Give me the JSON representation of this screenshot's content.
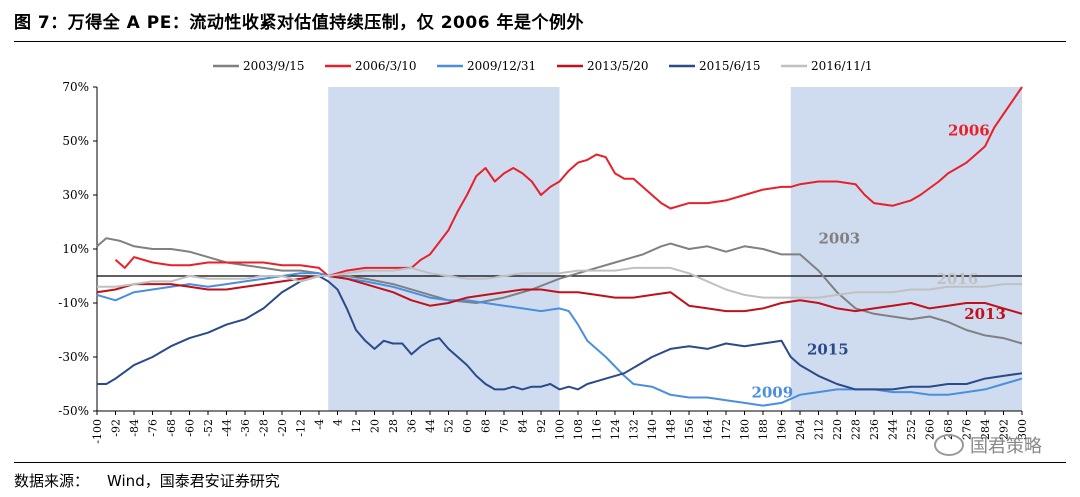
{
  "header": {
    "title": "图 7：万得全 A PE：流动性收紧对估值持续压制，仅 2006 年是个例外"
  },
  "footer": {
    "source_label": "数据来源：",
    "source_value": "Wind，国泰君安证券研究",
    "watermark": "国君策略"
  },
  "chart_data": {
    "type": "line",
    "title": "图 7：万得全 A PE：流动性收紧对估值持续压制，仅 2006 年是个例外",
    "xlabel": "",
    "ylabel": "",
    "xlim": [
      -100,
      300
    ],
    "ylim": [
      -50,
      70
    ],
    "yticks": [
      70,
      50,
      30,
      10,
      -10,
      -30,
      -50
    ],
    "ytick_labels": [
      "70%",
      "50%",
      "30%",
      "10%",
      "-10%",
      "-30%",
      "-50%"
    ],
    "xticks": [
      -100,
      -92,
      -84,
      -76,
      -68,
      -60,
      -52,
      -44,
      -36,
      -28,
      -20,
      -12,
      -4,
      4,
      12,
      20,
      28,
      36,
      44,
      52,
      60,
      68,
      76,
      84,
      92,
      100,
      108,
      116,
      124,
      132,
      140,
      148,
      156,
      164,
      172,
      180,
      188,
      196,
      204,
      212,
      220,
      228,
      236,
      244,
      252,
      260,
      268,
      276,
      284,
      292,
      300
    ],
    "xtick_labels": [
      "-100",
      "-92",
      "-84",
      "-76",
      "-68",
      "-60",
      "-52",
      "-44",
      "-36",
      "-28",
      "-20",
      "-12",
      "-4",
      "4",
      "12",
      "20",
      "28",
      "36",
      "44",
      "52",
      "60",
      "68",
      "76",
      "84",
      "92",
      "100",
      "108",
      "116",
      "124",
      "132",
      "140",
      "148",
      "156",
      "164",
      "172",
      "180",
      "188",
      "196",
      "204",
      "212",
      "220",
      "228",
      "236",
      "244",
      "252",
      "260",
      "268",
      "276",
      "284",
      "292",
      "300"
    ],
    "shaded_regions": [
      [
        0,
        100
      ],
      [
        200,
        300
      ]
    ],
    "grid": false,
    "legend": {
      "placement": "top",
      "entries": [
        "2003/9/15",
        "2006/3/10",
        "2009/12/31",
        "2013/5/20",
        "2015/6/15",
        "2016/11/1"
      ]
    },
    "series": [
      {
        "name": "2003/9/15",
        "color": "#808080",
        "width": 2,
        "x": [
          -100,
          -96,
          -90,
          -84,
          -76,
          -68,
          -60,
          -52,
          -44,
          -36,
          -28,
          -20,
          -12,
          -4,
          0,
          8,
          16,
          28,
          40,
          52,
          64,
          76,
          88,
          100,
          112,
          124,
          136,
          144,
          148,
          156,
          164,
          172,
          180,
          188,
          196,
          204,
          212,
          220,
          228,
          236,
          244,
          252,
          260,
          268,
          276,
          284,
          292,
          300
        ],
        "y": [
          11,
          14,
          13,
          11,
          10,
          10,
          9,
          7,
          5,
          4,
          3,
          2,
          2,
          1,
          0,
          0,
          -1,
          -3,
          -6,
          -9,
          -10,
          -8,
          -5,
          -1,
          2,
          5,
          8,
          11,
          12,
          10,
          11,
          9,
          11,
          10,
          8,
          8,
          2,
          -6,
          -12,
          -14,
          -15,
          -16,
          -15,
          -17,
          -20,
          -22,
          -23,
          -25
        ]
      },
      {
        "name": "2006/3/10",
        "color": "#e8202a",
        "width": 2,
        "x": [
          -92,
          -88,
          -84,
          -76,
          -68,
          -60,
          -52,
          -44,
          -36,
          -28,
          -20,
          -12,
          -4,
          0,
          8,
          16,
          28,
          36,
          40,
          44,
          52,
          56,
          60,
          64,
          68,
          72,
          76,
          80,
          84,
          88,
          92,
          96,
          100,
          104,
          108,
          112,
          116,
          120,
          124,
          128,
          132,
          136,
          140,
          144,
          148,
          156,
          164,
          172,
          180,
          188,
          196,
          200,
          204,
          212,
          220,
          228,
          232,
          236,
          244,
          248,
          252,
          256,
          264,
          268,
          272,
          276,
          280,
          284,
          288,
          292,
          296,
          300
        ],
        "y": [
          6,
          3,
          7,
          5,
          4,
          4,
          5,
          5,
          5,
          5,
          4,
          4,
          3,
          0,
          2,
          3,
          3,
          3,
          6,
          8,
          17,
          24,
          30,
          37,
          40,
          35,
          38,
          40,
          38,
          35,
          30,
          33,
          35,
          39,
          42,
          43,
          45,
          44,
          38,
          36,
          36,
          33,
          30,
          27,
          25,
          27,
          27,
          28,
          30,
          32,
          33,
          33,
          34,
          35,
          35,
          34,
          30,
          27,
          26,
          27,
          28,
          30,
          35,
          38,
          40,
          42,
          45,
          48,
          55,
          60,
          65,
          70
        ]
      },
      {
        "name": "2009/12/31",
        "color": "#4a8ee0",
        "width": 2,
        "x": [
          -100,
          -92,
          -84,
          -76,
          -68,
          -60,
          -52,
          -44,
          -36,
          -28,
          -20,
          -12,
          -4,
          0,
          8,
          16,
          28,
          36,
          44,
          52,
          60,
          68,
          76,
          84,
          92,
          100,
          104,
          108,
          112,
          120,
          128,
          132,
          140,
          148,
          156,
          164,
          172,
          180,
          188,
          196,
          204,
          212,
          220,
          228,
          236,
          244,
          252,
          260,
          268,
          276,
          284,
          292,
          300
        ],
        "y": [
          -7,
          -9,
          -6,
          -5,
          -4,
          -3,
          -4,
          -3,
          -2,
          -1,
          0,
          1,
          1,
          0,
          -1,
          -2,
          -4,
          -6,
          -8,
          -9,
          -9,
          -10,
          -11,
          -12,
          -13,
          -12,
          -13,
          -18,
          -24,
          -30,
          -37,
          -40,
          -41,
          -44,
          -45,
          -45,
          -46,
          -47,
          -48,
          -47,
          -44,
          -43,
          -42,
          -42,
          -42,
          -43,
          -43,
          -44,
          -44,
          -43,
          -42,
          -40,
          -38
        ]
      },
      {
        "name": "2013/5/20",
        "color": "#c0101a",
        "width": 2,
        "x": [
          -100,
          -92,
          -84,
          -76,
          -68,
          -60,
          -52,
          -44,
          -36,
          -28,
          -20,
          -12,
          -4,
          0,
          8,
          16,
          28,
          36,
          44,
          52,
          60,
          68,
          76,
          84,
          92,
          100,
          108,
          116,
          124,
          132,
          140,
          148,
          156,
          164,
          172,
          180,
          188,
          196,
          204,
          212,
          220,
          228,
          236,
          244,
          252,
          260,
          268,
          276,
          284,
          292,
          300
        ],
        "y": [
          -6,
          -5,
          -3,
          -3,
          -3,
          -4,
          -5,
          -5,
          -4,
          -3,
          -2,
          -1,
          0,
          0,
          -1,
          -3,
          -6,
          -9,
          -11,
          -10,
          -8,
          -7,
          -6,
          -5,
          -5,
          -6,
          -6,
          -7,
          -8,
          -8,
          -7,
          -6,
          -11,
          -12,
          -13,
          -13,
          -12,
          -10,
          -9,
          -10,
          -12,
          -13,
          -12,
          -11,
          -10,
          -12,
          -11,
          -10,
          -10,
          -12,
          -14
        ]
      },
      {
        "name": "2015/6/15",
        "color": "#2a4a8a",
        "width": 2,
        "x": [
          -100,
          -96,
          -92,
          -84,
          -76,
          -68,
          -60,
          -52,
          -44,
          -36,
          -28,
          -20,
          -12,
          -4,
          0,
          4,
          8,
          12,
          16,
          20,
          24,
          28,
          32,
          36,
          40,
          44,
          48,
          52,
          56,
          60,
          64,
          68,
          72,
          76,
          80,
          84,
          88,
          92,
          96,
          100,
          104,
          108,
          112,
          116,
          120,
          124,
          128,
          132,
          136,
          140,
          148,
          156,
          164,
          172,
          180,
          188,
          196,
          200,
          204,
          212,
          220,
          228,
          236,
          244,
          252,
          260,
          268,
          276,
          284,
          292,
          300
        ],
        "y": [
          -40,
          -40,
          -38,
          -33,
          -30,
          -26,
          -23,
          -21,
          -18,
          -16,
          -12,
          -6,
          -2,
          0,
          -2,
          -5,
          -12,
          -20,
          -24,
          -27,
          -24,
          -25,
          -25,
          -29,
          -26,
          -24,
          -23,
          -27,
          -30,
          -33,
          -37,
          -40,
          -42,
          -42,
          -41,
          -42,
          -41,
          -41,
          -40,
          -42,
          -41,
          -42,
          -40,
          -39,
          -38,
          -37,
          -36,
          -34,
          -32,
          -30,
          -27,
          -26,
          -27,
          -25,
          -26,
          -25,
          -24,
          -30,
          -33,
          -37,
          -40,
          -42,
          -42,
          -42,
          -41,
          -41,
          -40,
          -40,
          -38,
          -37,
          -36
        ]
      },
      {
        "name": "2016/11/1",
        "color": "#c0c0c0",
        "width": 2,
        "x": [
          -100,
          -92,
          -84,
          -76,
          -68,
          -60,
          -52,
          -44,
          -36,
          -28,
          -20,
          -12,
          -4,
          0,
          8,
          16,
          28,
          36,
          44,
          52,
          60,
          68,
          76,
          84,
          92,
          100,
          108,
          116,
          124,
          132,
          140,
          148,
          156,
          164,
          172,
          180,
          188,
          196,
          204,
          212,
          220,
          228,
          236,
          244,
          252,
          260,
          268,
          276,
          284,
          292,
          300
        ],
        "y": [
          -4,
          -4,
          -3,
          -2,
          -2,
          0,
          -1,
          -1,
          -1,
          0,
          0,
          -2,
          0,
          0,
          1,
          2,
          2,
          3,
          1,
          0,
          -1,
          -1,
          0,
          1,
          1,
          1,
          2,
          2,
          2,
          3,
          3,
          3,
          1,
          -2,
          -5,
          -7,
          -8,
          -8,
          -8,
          -8,
          -7,
          -6,
          -6,
          -6,
          -5,
          -5,
          -4,
          -4,
          -4,
          -3,
          -3
        ]
      }
    ],
    "annotations": [
      {
        "text": "2006",
        "color": "#e8202a",
        "x": 268,
        "y": 52
      },
      {
        "text": "2003",
        "color": "#808080",
        "x": 212,
        "y": 12
      },
      {
        "text": "2016",
        "color": "#c0c0c0",
        "x": 263,
        "y": -3
      },
      {
        "text": "2013",
        "color": "#c0101a",
        "x": 275,
        "y": -16
      },
      {
        "text": "2015",
        "color": "#2a4a8a",
        "x": 207,
        "y": -29
      },
      {
        "text": "2009",
        "color": "#4a8ee0",
        "x": 183,
        "y": -45
      }
    ]
  }
}
